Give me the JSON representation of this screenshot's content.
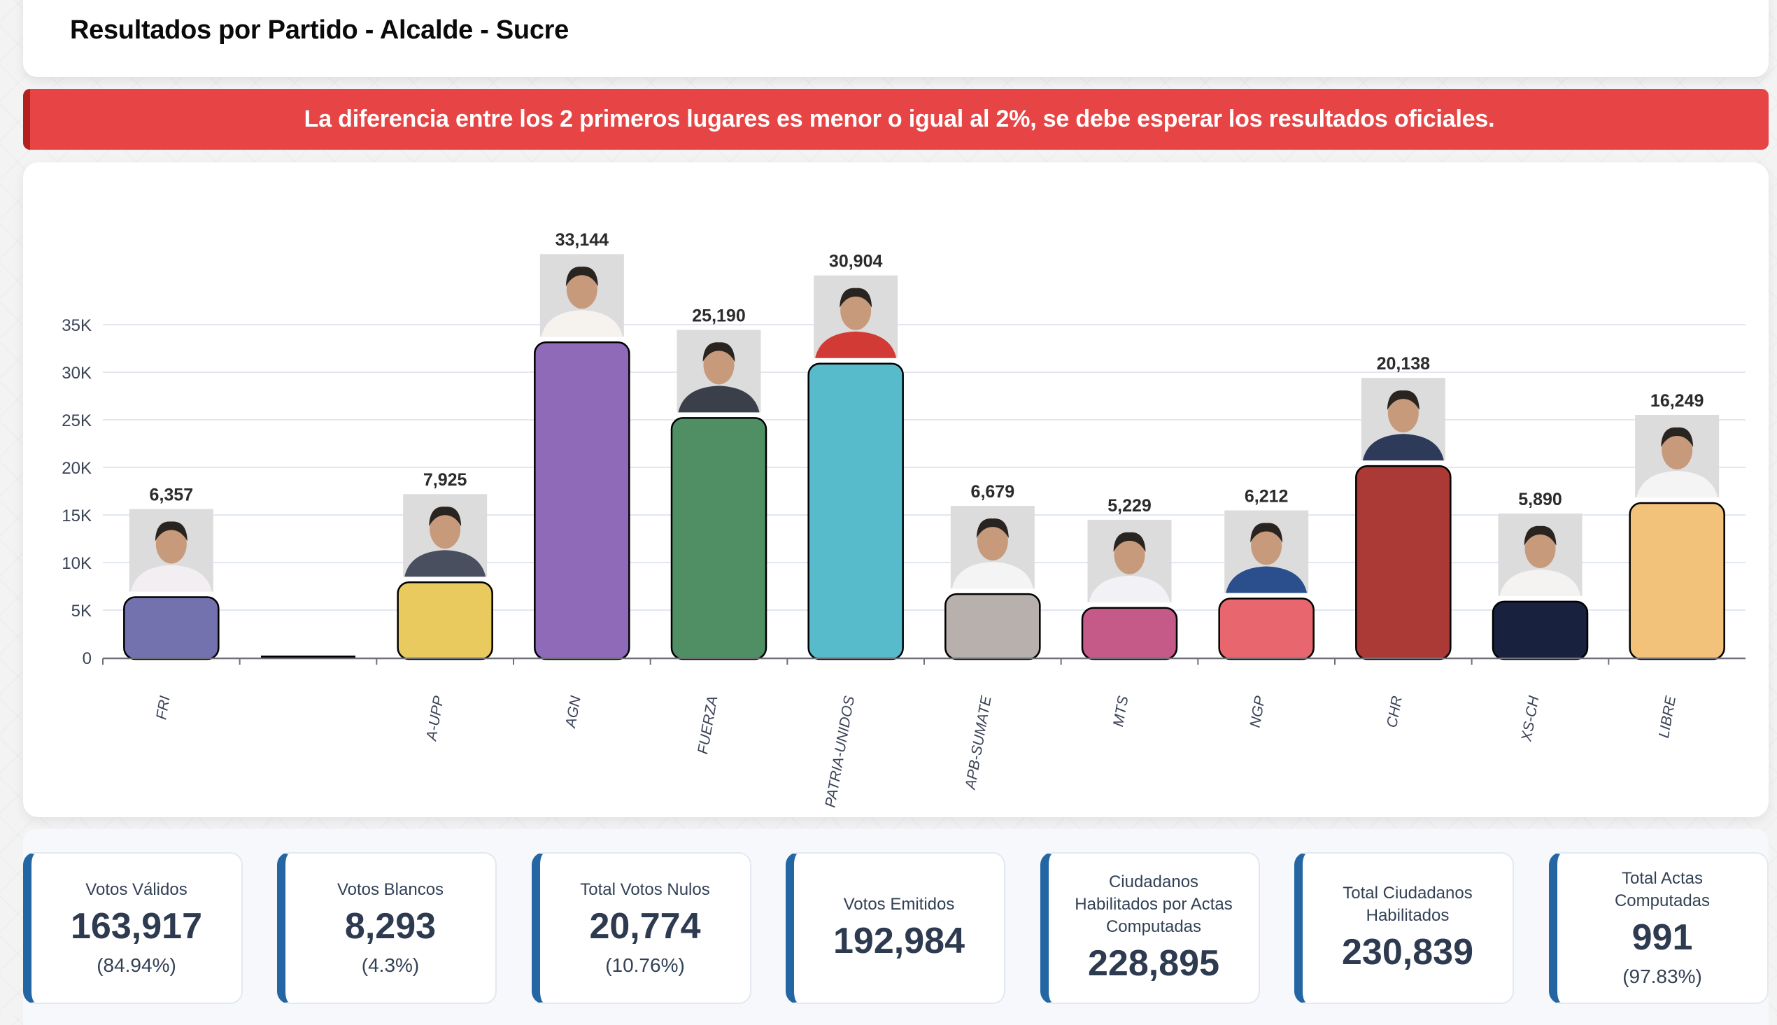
{
  "header": {
    "title": "Resultados por Partido - Alcalde - Sucre"
  },
  "alert": {
    "message": "La diferencia entre los 2 primeros lugares es menor o igual al 2%, se debe esperar los resultados oficiales.",
    "color": "#e74545"
  },
  "chart_data": {
    "type": "bar",
    "title": "",
    "xlabel": "",
    "ylabel": "",
    "categories": [
      "FRI",
      "",
      "A-UPP",
      "AGN",
      "FUERZA",
      "PATRIA-UNIDOS",
      "APB-SUMATE",
      "MTS",
      "NGP",
      "CHR",
      "XS-CH",
      "LIBRE"
    ],
    "values": [
      6357,
      0,
      7925,
      33144,
      25190,
      30904,
      6679,
      5229,
      6212,
      20138,
      5890,
      16249
    ],
    "value_labels": [
      "6,357",
      "",
      "7,925",
      "33,144",
      "25,190",
      "30,904",
      "6,679",
      "5,229",
      "6,212",
      "20,138",
      "5,890",
      "16,249"
    ],
    "colors": [
      "#7472ae",
      "#000000",
      "#e9ca5e",
      "#8e6ab8",
      "#4f8f63",
      "#57bbcb",
      "#b8b0ad",
      "#c55a89",
      "#e8666d",
      "#ab3936",
      "#18213d",
      "#f3c27a"
    ],
    "has_candidate_photo": [
      true,
      false,
      true,
      true,
      true,
      true,
      true,
      true,
      true,
      true,
      true,
      true
    ],
    "photo_shirt_colors": [
      "#f2eef2",
      null,
      "#4a4f60",
      "#f6f3ef",
      "#3b3f4a",
      "#d23b35",
      "#f4f4f4",
      "#f2f2f6",
      "#2a4f8c",
      "#2d3a5a",
      "#f5f3f2",
      "#f4f4f4"
    ],
    "yticks": [
      0,
      5000,
      10000,
      15000,
      20000,
      25000,
      30000,
      35000
    ],
    "ytick_labels": [
      "0",
      "5K",
      "10K",
      "15K",
      "20K",
      "25K",
      "30K",
      "35K"
    ],
    "ylim": [
      0,
      35000
    ],
    "grid": true,
    "legend": "none",
    "xtick_rotation": -80
  },
  "stats": [
    {
      "label": "Votos Válidos",
      "value": "163,917",
      "pct": "(84.94%)"
    },
    {
      "label": "Votos Blancos",
      "value": "8,293",
      "pct": "(4.3%)"
    },
    {
      "label": "Total Votos Nulos",
      "value": "20,774",
      "pct": "(10.76%)"
    },
    {
      "label": "Votos Emitidos",
      "value": "192,984",
      "pct": null
    },
    {
      "label": "Ciudadanos Habilitados por Actas Computadas",
      "value": "228,895",
      "pct": null
    },
    {
      "label": "Total Ciudadanos Habilitados",
      "value": "230,839",
      "pct": null
    },
    {
      "label": "Total Actas Computadas",
      "value": "991",
      "pct": "(97.83%)"
    }
  ]
}
